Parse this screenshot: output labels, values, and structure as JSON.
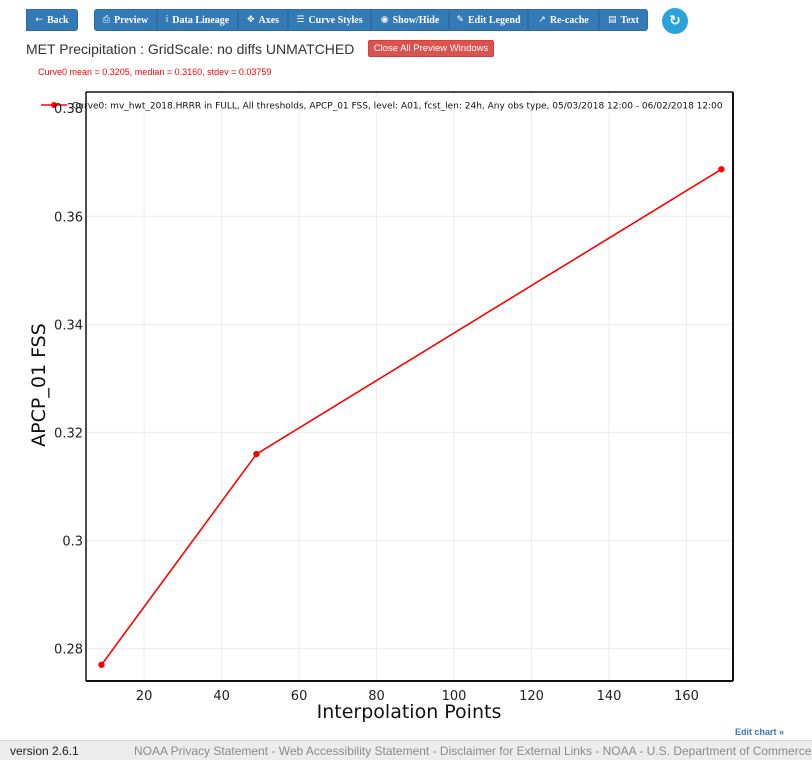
{
  "toolbar": {
    "back": "Back",
    "preview": "Preview",
    "data_lineage": "Data Lineage",
    "axes": "Axes",
    "curve_styles": "Curve Styles",
    "show_hide": "Show/Hide",
    "edit_legend": "Edit Legend",
    "recache": "Re-cache",
    "text": "Text"
  },
  "header": {
    "title": "MET Precipitation : GridScale: no diffs UNMATCHED",
    "close_button": "Close All Preview Windows"
  },
  "stats_line": "Curve0 mean = 0.3205, median = 0.3160, stdev = 0.03759",
  "chart_data": {
    "type": "line",
    "legend": "Curve0: mv_hwt_2018.HRRR in FULL, All thresholds, APCP_01 FSS, level: A01, fcst_len: 24h, Any obs type, 05/03/2018 12:00 - 06/02/2018 12:00",
    "xlabel": "Interpolation Points",
    "ylabel": "APCP_01 FSS",
    "x": [
      9,
      49,
      169
    ],
    "y": [
      0.277,
      0.316,
      0.3687
    ],
    "xlim": [
      5,
      172
    ],
    "ylim": [
      0.274,
      0.383
    ],
    "xticks": [
      20,
      40,
      60,
      80,
      100,
      120,
      140,
      160
    ],
    "yticks": [
      0.28,
      0.3,
      0.32,
      0.34,
      0.36,
      0.38
    ],
    "ytick_labels": [
      "0.28",
      "0.3",
      "0.32",
      "0.34",
      "0.36",
      "0.38"
    ],
    "color": "#ff0000",
    "grid": true
  },
  "edit_chart": "Edit chart »",
  "footer": {
    "version": "version 2.6.1",
    "links": [
      "NOAA Privacy Statement",
      "Web Accessibility Statement",
      "Disclaimer for External Links",
      "NOAA",
      "U.S. Department of Commerce"
    ]
  }
}
